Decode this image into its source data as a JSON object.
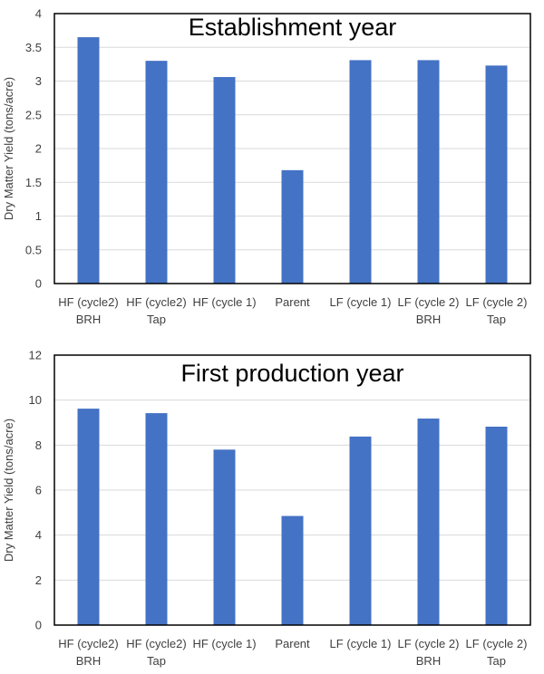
{
  "colors": {
    "bar": "#4472c4",
    "grid": "#d9d9d9",
    "frame": "#000000"
  },
  "chart_data": [
    {
      "type": "bar",
      "title": "Establishment year",
      "xlabel": "",
      "ylabel": "Dry Matter Yield (tons/acre)",
      "categories": [
        "HF (cycle2)\nBRH",
        "HF (cycle2)\nTap",
        "HF (cycle 1)",
        "Parent",
        "LF (cycle 1)",
        "LF (cycle 2)\nBRH",
        "LF (cycle 2)\nTap"
      ],
      "values": [
        3.65,
        3.3,
        3.06,
        1.68,
        3.31,
        3.31,
        3.23
      ],
      "ylim": [
        0,
        4
      ],
      "yticks": [
        0,
        0.5,
        1,
        1.5,
        2,
        2.5,
        3,
        3.5,
        4
      ],
      "ytick_labels": [
        "0",
        "0.5",
        "1",
        "1.5",
        "2",
        "2.5",
        "3",
        "3.5",
        "4"
      ],
      "grid": true
    },
    {
      "type": "bar",
      "title": "First production year",
      "xlabel": "",
      "ylabel": "Dry Matter Yield (tons/acre)",
      "categories": [
        "HF (cycle2)\nBRH",
        "HF (cycle2)\nTap",
        "HF (cycle 1)",
        "Parent",
        "LF (cycle 1)",
        "LF (cycle 2)\nBRH",
        "LF (cycle 2)\nTap"
      ],
      "values": [
        9.62,
        9.42,
        7.8,
        4.85,
        8.38,
        9.18,
        8.82
      ],
      "ylim": [
        0,
        12
      ],
      "yticks": [
        0,
        2,
        4,
        6,
        8,
        10,
        12
      ],
      "ytick_labels": [
        "0",
        "2",
        "4",
        "6",
        "8",
        "10",
        "12"
      ],
      "grid": true
    }
  ]
}
